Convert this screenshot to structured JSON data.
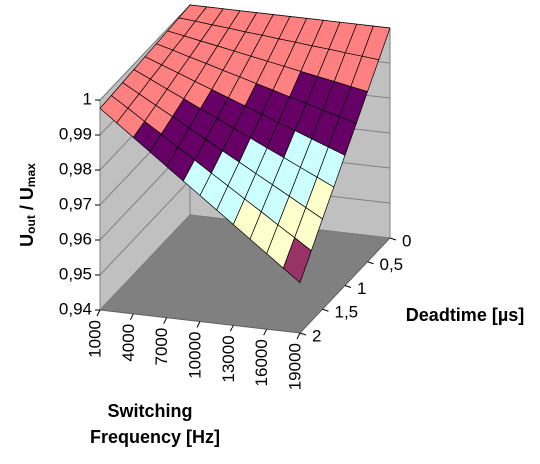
{
  "chart_data": {
    "type": "surface",
    "zlabel": [
      "U",
      "out",
      " / U",
      "max"
    ],
    "xlabel": [
      "Switching",
      "Frequency [Hz]"
    ],
    "ylabel": "Deadtime [µs]",
    "x_categories": [
      "1000",
      null,
      "4000",
      null,
      "7000",
      null,
      "10000",
      null,
      "13000",
      null,
      "16000",
      null,
      "19000"
    ],
    "y_categories": [
      "0",
      null,
      "0,5",
      null,
      "1",
      null,
      "1,5",
      null,
      "2"
    ],
    "values": [
      [
        1,
        1,
        1,
        1,
        1,
        1,
        1,
        1,
        1,
        1,
        1,
        1,
        1
      ],
      [
        0.9997,
        0.9993,
        0.9988,
        0.9984,
        0.9979,
        0.9975,
        0.997,
        0.9966,
        0.9961,
        0.9957,
        0.9952,
        0.9948,
        0.9943
      ],
      [
        0.9994,
        0.9985,
        0.9976,
        0.9967,
        0.9958,
        0.9949,
        0.994,
        0.9931,
        0.9922,
        0.9913,
        0.9904,
        0.9895,
        0.9886
      ],
      [
        0.9991,
        0.9978,
        0.9964,
        0.9951,
        0.9937,
        0.9924,
        0.991,
        0.9897,
        0.9883,
        0.987,
        0.9856,
        0.9843,
        0.9829
      ],
      [
        0.9988,
        0.997,
        0.9952,
        0.9934,
        0.9916,
        0.9898,
        0.988,
        0.9862,
        0.9844,
        0.9826,
        0.9808,
        0.979,
        0.9772
      ],
      [
        0.9985,
        0.9963,
        0.994,
        0.9918,
        0.9895,
        0.9873,
        0.985,
        0.9828,
        0.9805,
        0.9783,
        0.976,
        0.9738,
        0.9715
      ],
      [
        0.9982,
        0.9955,
        0.9928,
        0.9901,
        0.9874,
        0.9847,
        0.982,
        0.9793,
        0.9766,
        0.9739,
        0.9712,
        0.9685,
        0.9658
      ],
      [
        0.9979,
        0.9948,
        0.9916,
        0.9885,
        0.9853,
        0.9822,
        0.979,
        0.9759,
        0.9727,
        0.9696,
        0.9664,
        0.9633,
        0.9601
      ],
      [
        0.9976,
        0.994,
        0.9904,
        0.9868,
        0.9832,
        0.9796,
        0.976,
        0.9724,
        0.9688,
        0.9652,
        0.9616,
        0.958,
        0.9544
      ]
    ],
    "zlim": [
      0.94,
      1
    ],
    "zticks": [
      {
        "value": 0.94,
        "label": "0,94"
      },
      {
        "value": 0.95,
        "label": "0,95"
      },
      {
        "value": 0.96,
        "label": "0,96"
      },
      {
        "value": 0.97,
        "label": "0,97"
      },
      {
        "value": 0.98,
        "label": "0,98"
      },
      {
        "value": 0.99,
        "label": "0,99"
      },
      1
    ],
    "band_colors": [
      "#9999ff",
      "#993366",
      "#ffffcc",
      "#ccffff",
      "#660066",
      "#ff8080"
    ],
    "grid": true
  }
}
